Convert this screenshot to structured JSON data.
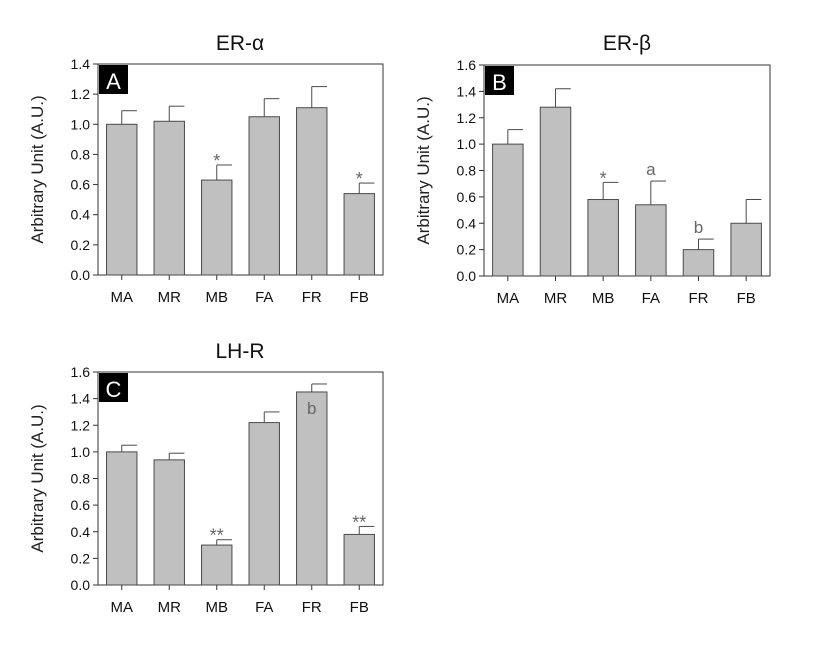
{
  "colors": {
    "bar_fill": "#c0c0c0",
    "bar_stroke": "#4a4a4a",
    "axis": "#333333",
    "text": "#111111",
    "annotation": "#666666",
    "badge_bg": "#000000",
    "badge_text": "#ffffff"
  },
  "chart_data": [
    {
      "type": "bar",
      "panel": "A",
      "title": "ER-α",
      "ylabel": "Arbitrary Unit (A.U.)",
      "xlabel": "",
      "ylim": [
        0,
        1.4
      ],
      "yticks": [
        "0.0",
        "0.2",
        "0.4",
        "0.6",
        "0.8",
        "1.0",
        "1.2",
        "1.4"
      ],
      "categories": [
        "MA",
        "MR",
        "MB",
        "FA",
        "FR",
        "FB"
      ],
      "values": [
        1.0,
        1.02,
        0.63,
        1.05,
        1.11,
        0.54
      ],
      "errors": [
        0.09,
        0.1,
        0.1,
        0.12,
        0.14,
        0.07
      ],
      "annotations": [
        "",
        "",
        "*",
        "",
        "",
        "*"
      ],
      "annotation_inside": [
        false,
        false,
        false,
        false,
        false,
        false
      ]
    },
    {
      "type": "bar",
      "panel": "B",
      "title": "ER-β",
      "ylabel": "Arbitrary Unit (A.U.)",
      "xlabel": "",
      "ylim": [
        0,
        1.6
      ],
      "yticks": [
        "0.0",
        "0.2",
        "0.4",
        "0.6",
        "0.8",
        "1.0",
        "1.2",
        "1.4",
        "1.6"
      ],
      "categories": [
        "MA",
        "MR",
        "MB",
        "FA",
        "FR",
        "FB"
      ],
      "values": [
        1.0,
        1.28,
        0.58,
        0.54,
        0.2,
        0.4
      ],
      "errors": [
        0.11,
        0.14,
        0.13,
        0.18,
        0.08,
        0.18
      ],
      "annotations": [
        "",
        "",
        "*",
        "a",
        "b",
        ""
      ],
      "annotation_inside": [
        false,
        false,
        false,
        false,
        false,
        false
      ]
    },
    {
      "type": "bar",
      "panel": "C",
      "title": "LH-R",
      "ylabel": "Arbitrary Unit (A.U.)",
      "xlabel": "",
      "ylim": [
        0,
        1.6
      ],
      "yticks": [
        "0.0",
        "0.2",
        "0.4",
        "0.6",
        "0.8",
        "1.0",
        "1.2",
        "1.4",
        "1.6"
      ],
      "categories": [
        "MA",
        "MR",
        "MB",
        "FA",
        "FR",
        "FB"
      ],
      "values": [
        1.0,
        0.94,
        0.3,
        1.22,
        1.45,
        0.38
      ],
      "errors": [
        0.05,
        0.05,
        0.04,
        0.08,
        0.06,
        0.06
      ],
      "annotations": [
        "",
        "",
        "**",
        "",
        "b",
        "**"
      ],
      "annotation_inside": [
        false,
        false,
        false,
        false,
        true,
        false
      ]
    }
  ]
}
